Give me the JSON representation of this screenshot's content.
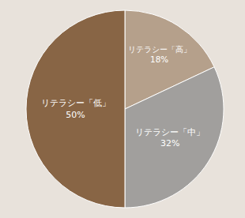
{
  "chart_data": {
    "type": "pie",
    "categories": [
      "リテラシー「高」",
      "リテラシー「中」",
      "リテラシー「低」"
    ],
    "values": [
      18,
      32,
      50
    ],
    "value_labels": [
      "18%",
      "32%",
      "50%"
    ],
    "colors": [
      "#b5a08b",
      "#a19f9d",
      "#886545"
    ],
    "data_labels": true
  }
}
